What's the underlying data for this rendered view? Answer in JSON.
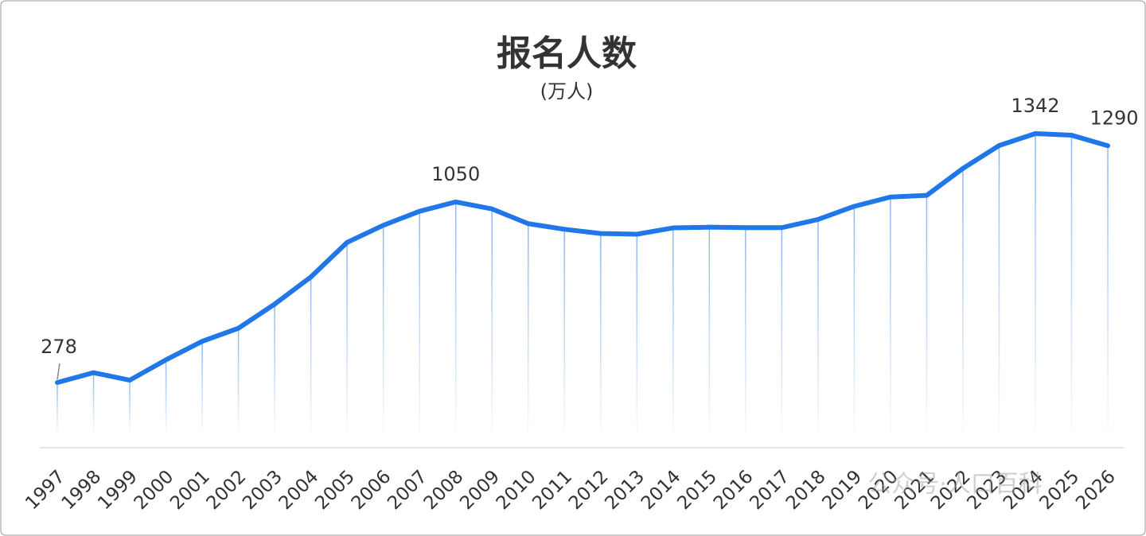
{
  "chart_data": {
    "type": "line",
    "title": "报名人数",
    "subtitle": "(万人)",
    "categories": [
      "1997",
      "1998",
      "1999",
      "2000",
      "2001",
      "2002",
      "2003",
      "2004",
      "2005",
      "2006",
      "2007",
      "2008",
      "2009",
      "2010",
      "2011",
      "2012",
      "2013",
      "2014",
      "2015",
      "2016",
      "2017",
      "2018",
      "2019",
      "2020",
      "2021",
      "2022",
      "2023",
      "2024",
      "2025",
      "2026"
    ],
    "series": [
      {
        "name": "报名人数",
        "color": "#1f77e8",
        "values": [
          278,
          320,
          288,
          375,
          454,
          510,
          613,
          729,
          877,
          950,
          1010,
          1050,
          1020,
          957,
          933,
          915,
          912,
          939,
          942,
          940,
          940,
          975,
          1031,
          1071,
          1078,
          1193,
          1291,
          1342,
          1335,
          1290
        ],
        "value_labels": [
          "278",
          null,
          null,
          null,
          null,
          null,
          null,
          null,
          null,
          null,
          null,
          "1050",
          null,
          null,
          null,
          null,
          null,
          null,
          null,
          null,
          null,
          null,
          null,
          null,
          null,
          null,
          null,
          "1342",
          null,
          "1290"
        ]
      }
    ],
    "watermark": "公众号·人口百科"
  }
}
